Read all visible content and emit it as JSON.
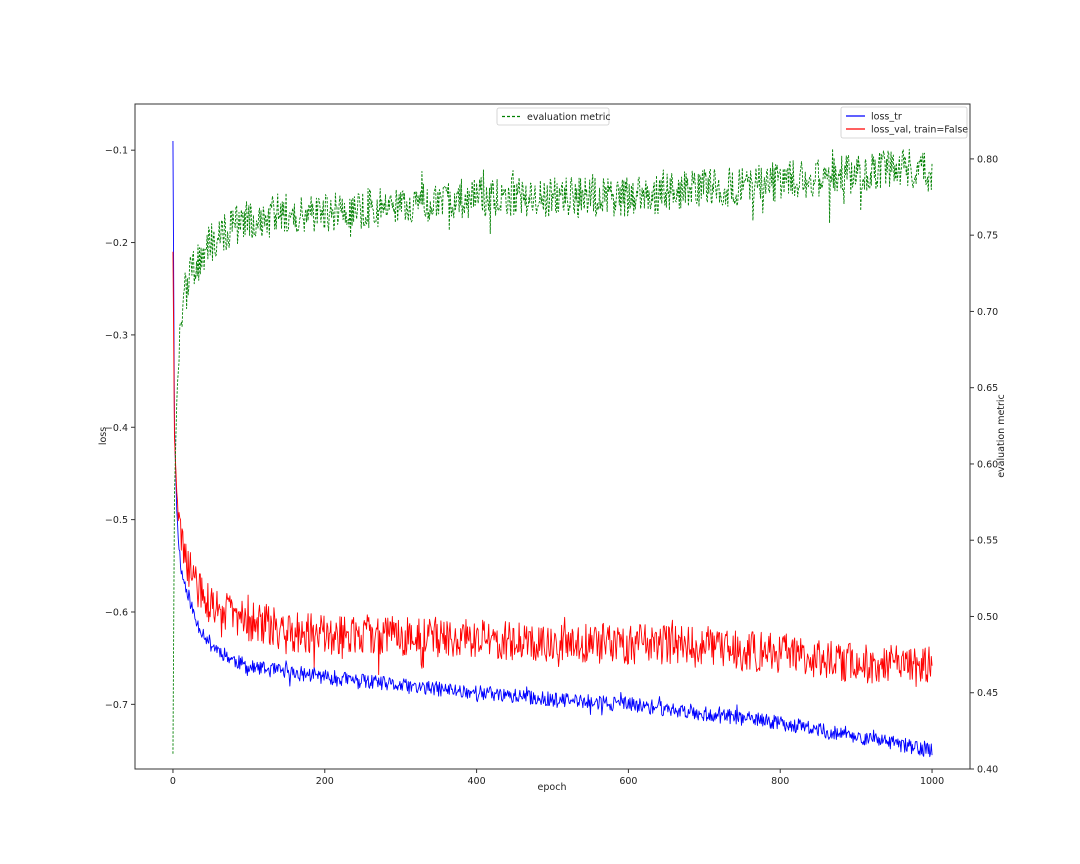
{
  "chart_data": {
    "type": "line",
    "title": "",
    "xlabel": "epoch",
    "ylabel": "loss",
    "y2label": "evaluation metric",
    "xlim": [
      -50,
      1050
    ],
    "ylim": [
      -0.77,
      -0.05
    ],
    "y2lim": [
      0.4,
      0.836
    ],
    "xticks": [
      0,
      200,
      400,
      600,
      800,
      1000
    ],
    "yticks": [
      -0.1,
      -0.2,
      -0.3,
      -0.4,
      -0.5,
      -0.6,
      -0.7
    ],
    "y2ticks": [
      0.8,
      0.75,
      0.7,
      0.65,
      0.6,
      0.55,
      0.5,
      0.45,
      0.4
    ],
    "xtick_labels": [
      "0",
      "200",
      "400",
      "600",
      "800",
      "1000"
    ],
    "ytick_labels": [
      "−0.1",
      "−0.2",
      "−0.3",
      "−0.4",
      "−0.5",
      "−0.6",
      "−0.7"
    ],
    "y2tick_labels": [
      "0.80",
      "0.75",
      "0.70",
      "0.65",
      "0.60",
      "0.55",
      "0.50",
      "0.45",
      "0.40"
    ],
    "grid": false,
    "series": [
      {
        "name": "loss_tr",
        "axis": "left",
        "color": "#0000ff",
        "style": "solid",
        "x": [
          0,
          2,
          5,
          8,
          12,
          20,
          30,
          50,
          75,
          100,
          150,
          200,
          300,
          400,
          500,
          600,
          650,
          700,
          800,
          900,
          1000
        ],
        "values": [
          -0.09,
          -0.4,
          -0.49,
          -0.53,
          -0.56,
          -0.58,
          -0.61,
          -0.635,
          -0.65,
          -0.66,
          -0.665,
          -0.67,
          -0.68,
          -0.687,
          -0.695,
          -0.7,
          -0.705,
          -0.71,
          -0.72,
          -0.735,
          -0.75
        ]
      },
      {
        "name": "loss_val, train=False",
        "axis": "left",
        "color": "#ff0000",
        "style": "solid",
        "x": [
          0,
          2,
          5,
          8,
          12,
          20,
          30,
          50,
          75,
          100,
          150,
          200,
          300,
          400,
          500,
          600,
          650,
          700,
          800,
          900,
          1000
        ],
        "values": [
          -0.21,
          -0.41,
          -0.47,
          -0.5,
          -0.53,
          -0.55,
          -0.57,
          -0.595,
          -0.6,
          -0.61,
          -0.62,
          -0.625,
          -0.625,
          -0.63,
          -0.632,
          -0.635,
          -0.635,
          -0.64,
          -0.645,
          -0.655,
          -0.66
        ]
      },
      {
        "name": "evaluation metric",
        "axis": "right",
        "color": "#008000",
        "style": "dashed",
        "x": [
          0,
          2,
          5,
          8,
          12,
          20,
          30,
          50,
          75,
          100,
          150,
          200,
          300,
          400,
          500,
          600,
          700,
          800,
          900,
          960,
          1000
        ],
        "values": [
          0.41,
          0.58,
          0.64,
          0.68,
          0.7,
          0.72,
          0.73,
          0.745,
          0.755,
          0.76,
          0.765,
          0.765,
          0.77,
          0.775,
          0.775,
          0.775,
          0.78,
          0.785,
          0.79,
          0.795,
          0.79
        ]
      }
    ],
    "legends": [
      {
        "placement": "top-center",
        "entries": [
          "evaluation metric"
        ]
      },
      {
        "placement": "top-right",
        "entries": [
          "loss_tr",
          "loss_val, train=False"
        ]
      }
    ]
  }
}
